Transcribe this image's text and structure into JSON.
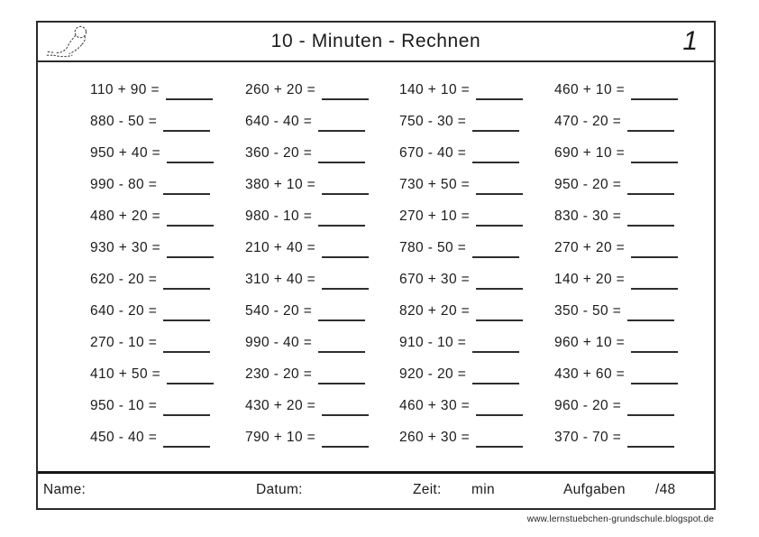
{
  "header": {
    "title": "10 - Minuten - Rechnen",
    "page_number": "1",
    "logo_icon": "mouse-sketch-icon"
  },
  "problems": {
    "total_count": 48,
    "rows": [
      [
        "110 + 90 =",
        "260 + 20 =",
        "140 + 10 =",
        "460 + 10 ="
      ],
      [
        "880 - 50 =",
        "640 - 40 =",
        "750 - 30 =",
        "470 - 20 ="
      ],
      [
        "950 + 40 =",
        "360 - 20 =",
        "670 - 40 =",
        "690 + 10 ="
      ],
      [
        "990 - 80 =",
        "380 + 10 =",
        "730 + 50 =",
        "950 - 20 ="
      ],
      [
        "480 + 20 =",
        "980 - 10 =",
        "270 + 10 =",
        "830 - 30 ="
      ],
      [
        "930 + 30 =",
        "210 + 40 =",
        "780 - 50 =",
        "270 + 20 ="
      ],
      [
        "620 - 20 =",
        "310 + 40 =",
        "670 + 30 =",
        "140 + 20 ="
      ],
      [
        "640 - 20 =",
        "540 - 20 =",
        "820 + 20 =",
        "350 - 50 ="
      ],
      [
        "270 - 10 =",
        "990 - 40 =",
        "910 - 10 =",
        "960 + 10 ="
      ],
      [
        "410 + 50 =",
        "230 - 20 =",
        "920 - 20 =",
        "430 + 60 ="
      ],
      [
        "950 - 10 =",
        "430 + 20 =",
        "460 + 30 =",
        "960 - 20 ="
      ],
      [
        "450 - 40 =",
        "790 + 10 =",
        "260 + 30 =",
        "370 - 70 ="
      ]
    ]
  },
  "footer": {
    "name_label": "Name:",
    "datum_label": "Datum:",
    "zeit_label": "Zeit:",
    "zeit_unit": "min",
    "aufgaben_label": "Aufgaben",
    "aufgaben_count": "/48",
    "url": "www.lernstuebchen-grundschule.blogspot.de"
  },
  "colors": {
    "paper": "#ffffff",
    "ink": "#1b1b1b",
    "border": "#2a2a2a"
  }
}
